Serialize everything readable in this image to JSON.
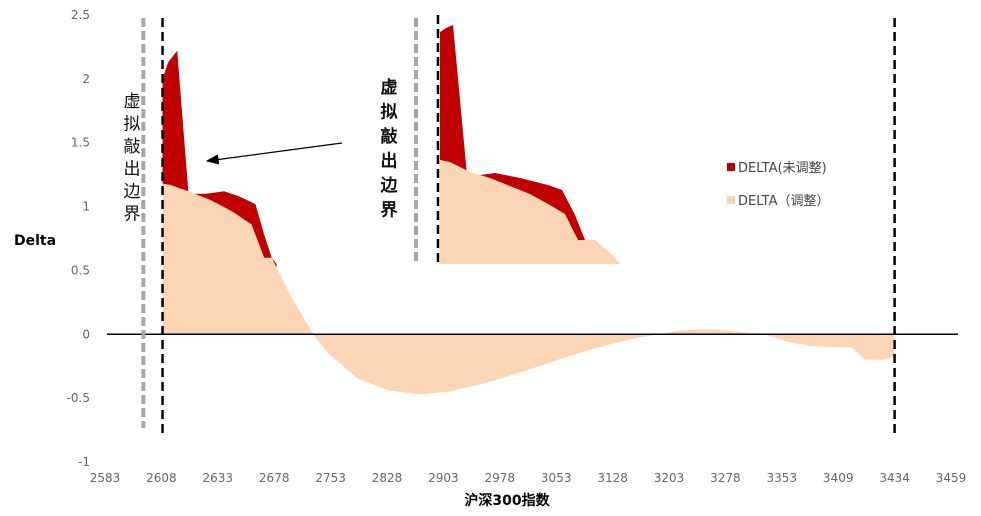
{
  "chart_data": {
    "type": "area",
    "xlabel": "沪深300指数",
    "ylabel": "Delta",
    "ylim": [
      -1,
      2.5
    ],
    "yticks": [
      "2.5",
      "2",
      "1.5",
      "1",
      "0.5",
      "0",
      "-0.5",
      "-1"
    ],
    "xticks": [
      "2583",
      "2608",
      "2633",
      "2678",
      "2753",
      "2828",
      "2903",
      "2978",
      "3053",
      "3128",
      "3203",
      "3278",
      "3353",
      "3409",
      "3434",
      "3459"
    ],
    "legend_position": "right",
    "annotation": "虚拟敲出边界",
    "series": [
      {
        "name": "DELTA(未调整)",
        "color": "#c00000",
        "points": [
          [
            2608.5,
            2.0
          ],
          [
            2611,
            2.13
          ],
          [
            2615,
            2.22
          ],
          [
            2620,
            1.1
          ],
          [
            2628,
            1.1
          ],
          [
            2638,
            1.12
          ],
          [
            2650,
            1.08
          ],
          [
            2663,
            1.02
          ],
          [
            2670,
            0.78
          ],
          [
            2676,
            0.6
          ],
          [
            2681,
            0.55
          ]
        ]
      },
      {
        "name": "DELTA（调整）",
        "color": "#fcd5b5",
        "points": [
          [
            2608.5,
            0
          ],
          [
            2608.5,
            1.18
          ],
          [
            2612,
            1.17
          ],
          [
            2620,
            1.12
          ],
          [
            2630,
            1.05
          ],
          [
            2645,
            0.96
          ],
          [
            2660,
            0.86
          ],
          [
            2670,
            0.6
          ],
          [
            2676,
            0.6
          ],
          [
            2683,
            0.5
          ],
          [
            2700,
            0.3
          ],
          [
            2730,
            0.0
          ],
          [
            2750,
            -0.15
          ],
          [
            2790,
            -0.35
          ],
          [
            2830,
            -0.44
          ],
          [
            2870,
            -0.47
          ],
          [
            2910,
            -0.45
          ],
          [
            2960,
            -0.38
          ],
          [
            3010,
            -0.29
          ],
          [
            3060,
            -0.19
          ],
          [
            3110,
            -0.1
          ],
          [
            3160,
            -0.03
          ],
          [
            3190,
            0.0
          ],
          [
            3220,
            0.03
          ],
          [
            3250,
            0.04
          ],
          [
            3280,
            0.03
          ],
          [
            3310,
            0.01
          ],
          [
            3330,
            0.0
          ],
          [
            3355,
            -0.05
          ],
          [
            3380,
            -0.09
          ],
          [
            3405,
            -0.1
          ],
          [
            3415,
            -0.1
          ],
          [
            3421,
            -0.2
          ],
          [
            3430,
            -0.2
          ],
          [
            3434,
            -0.17
          ]
        ]
      }
    ],
    "boundaries": [
      {
        "x": 2600,
        "style": "gray-dashed"
      },
      {
        "x": 2608.5,
        "style": "black-dashed"
      },
      {
        "x": 3434,
        "style": "black-dashed"
      }
    ]
  }
}
